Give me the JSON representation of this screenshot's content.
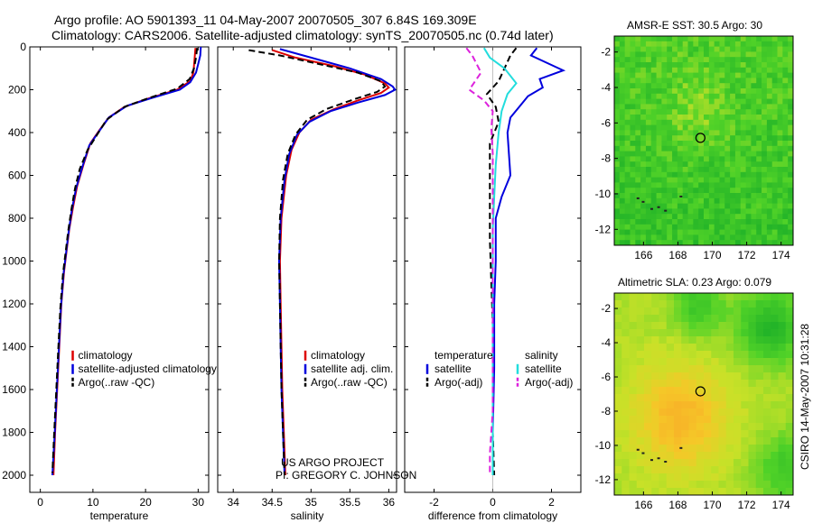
{
  "header": {
    "line1": "Argo profile: AO 5901393_11 04-May-2007 20070505_307 6.84S 169.309E",
    "line2": "Climatology: CARS2006. Satellite-adjusted climatology: synTS_20070505.nc (0.74d later)"
  },
  "side_stamp": "CSIRO 14-May-2007 10:31:28",
  "project_note": [
    "US ARGO PROJECT",
    "PI: GREGORY C. JOHNSON"
  ],
  "chart_data": [
    {
      "type": "line",
      "id": "temperature",
      "xlabel": "temperature",
      "xlim": [
        -2,
        32
      ],
      "xticks": [
        0,
        10,
        20,
        30
      ],
      "ylim": [
        2080,
        0
      ],
      "yticks": [
        0,
        200,
        400,
        600,
        800,
        1000,
        1200,
        1400,
        1600,
        1800,
        2000
      ],
      "legend": [
        {
          "label": "climatology",
          "color": "#dd0000",
          "dash": "solid"
        },
        {
          "label": "satellite-adjusted climatology",
          "color": "#0000dd",
          "dash": "solid"
        },
        {
          "label": "Argo(..raw -QC)",
          "color": "#000000",
          "dash": "dashed"
        }
      ],
      "series": [
        {
          "name": "climatology",
          "color": "#dd0000",
          "dash": "solid",
          "points": [
            [
              29.5,
              5
            ],
            [
              29.3,
              60
            ],
            [
              29.1,
              120
            ],
            [
              28.5,
              160
            ],
            [
              26,
              200
            ],
            [
              20,
              245
            ],
            [
              16,
              280
            ],
            [
              13,
              330
            ],
            [
              11.2,
              390
            ],
            [
              9.5,
              450
            ],
            [
              8.2,
              550
            ],
            [
              7,
              650
            ],
            [
              6.2,
              750
            ],
            [
              5.5,
              850
            ],
            [
              5,
              950
            ],
            [
              4.5,
              1050
            ],
            [
              4,
              1200
            ],
            [
              3.6,
              1400
            ],
            [
              3.2,
              1600
            ],
            [
              2.8,
              1800
            ],
            [
              2.5,
              2000
            ]
          ]
        },
        {
          "name": "satellite-adjusted climatology",
          "color": "#0000dd",
          "dash": "solid",
          "points": [
            [
              30.5,
              0
            ],
            [
              30.4,
              40
            ],
            [
              30,
              80
            ],
            [
              29.6,
              120
            ],
            [
              28.5,
              165
            ],
            [
              26.5,
              200
            ],
            [
              21,
              240
            ],
            [
              16.5,
              275
            ],
            [
              13,
              330
            ],
            [
              11,
              400
            ],
            [
              9.3,
              460
            ],
            [
              8,
              560
            ],
            [
              6.8,
              660
            ],
            [
              6,
              760
            ],
            [
              5.4,
              860
            ],
            [
              4.9,
              960
            ],
            [
              4.4,
              1060
            ],
            [
              3.9,
              1220
            ],
            [
              3.5,
              1420
            ],
            [
              3.1,
              1620
            ],
            [
              2.7,
              1820
            ],
            [
              2.3,
              2000
            ]
          ]
        },
        {
          "name": "Argo(..raw -QC)",
          "color": "#000000",
          "dash": "dashed",
          "points": [
            [
              29.8,
              5
            ],
            [
              29.6,
              50
            ],
            [
              29.2,
              100
            ],
            [
              28.4,
              150
            ],
            [
              26,
              195
            ],
            [
              20.5,
              240
            ],
            [
              16,
              280
            ],
            [
              12.6,
              340
            ],
            [
              10.8,
              410
            ],
            [
              9,
              480
            ],
            [
              7.5,
              570
            ],
            [
              6.6,
              660
            ],
            [
              5.9,
              760
            ],
            [
              5.3,
              860
            ],
            [
              4.8,
              960
            ],
            [
              4.3,
              1060
            ],
            [
              3.8,
              1220
            ],
            [
              3.4,
              1420
            ],
            [
              3,
              1620
            ],
            [
              2.6,
              1820
            ],
            [
              2.3,
              1990
            ]
          ]
        }
      ]
    },
    {
      "type": "line",
      "id": "salinity",
      "xlabel": "salinity",
      "xlim": [
        33.8,
        36.1
      ],
      "xticks": [
        34,
        34.5,
        35,
        35.5,
        36
      ],
      "xticklabels": [
        "34",
        "34.5",
        "35",
        "35.5",
        "36"
      ],
      "ylim": [
        2080,
        0
      ],
      "legend": [
        {
          "label": "climatology",
          "color": "#dd0000",
          "dash": "solid"
        },
        {
          "label": "satellite adj. clim.",
          "color": "#0000dd",
          "dash": "solid"
        },
        {
          "label": "Argo(..raw -QC)",
          "color": "#000000",
          "dash": "dashed"
        }
      ],
      "series": [
        {
          "name": "climatology",
          "color": "#dd0000",
          "dash": "solid",
          "points": [
            [
              34.5,
              15
            ],
            [
              34.8,
              50
            ],
            [
              35.3,
              90
            ],
            [
              35.7,
              130
            ],
            [
              35.95,
              170
            ],
            [
              36.0,
              190
            ],
            [
              35.9,
              215
            ],
            [
              35.6,
              250
            ],
            [
              35.3,
              290
            ],
            [
              35.0,
              340
            ],
            [
              34.85,
              400
            ],
            [
              34.75,
              480
            ],
            [
              34.68,
              600
            ],
            [
              34.62,
              800
            ],
            [
              34.6,
              1000
            ],
            [
              34.61,
              1200
            ],
            [
              34.62,
              1400
            ],
            [
              34.63,
              1600
            ],
            [
              34.65,
              1800
            ],
            [
              34.67,
              2000
            ]
          ]
        },
        {
          "name": "satellite adj. clim.",
          "color": "#0000dd",
          "dash": "solid",
          "points": [
            [
              34.6,
              10
            ],
            [
              35.0,
              50
            ],
            [
              35.5,
              100
            ],
            [
              35.9,
              150
            ],
            [
              36.05,
              185
            ],
            [
              36.08,
              200
            ],
            [
              35.95,
              225
            ],
            [
              35.6,
              260
            ],
            [
              35.25,
              300
            ],
            [
              34.98,
              350
            ],
            [
              34.82,
              410
            ],
            [
              34.72,
              500
            ],
            [
              34.66,
              620
            ],
            [
              34.61,
              800
            ],
            [
              34.59,
              1000
            ],
            [
              34.6,
              1200
            ],
            [
              34.61,
              1400
            ],
            [
              34.62,
              1600
            ],
            [
              34.64,
              1800
            ],
            [
              34.66,
              2000
            ]
          ]
        },
        {
          "name": "Argo(..raw -QC)",
          "color": "#000000",
          "dash": "dashed",
          "points": [
            [
              34.2,
              15
            ],
            [
              34.6,
              40
            ],
            [
              35.1,
              80
            ],
            [
              35.6,
              120
            ],
            [
              35.9,
              160
            ],
            [
              35.95,
              185
            ],
            [
              35.85,
              210
            ],
            [
              35.55,
              245
            ],
            [
              35.2,
              290
            ],
            [
              34.95,
              340
            ],
            [
              34.8,
              410
            ],
            [
              34.7,
              500
            ],
            [
              34.64,
              620
            ],
            [
              34.6,
              800
            ],
            [
              34.59,
              1000
            ],
            [
              34.6,
              1200
            ],
            [
              34.61,
              1400
            ],
            [
              34.62,
              1600
            ],
            [
              34.64,
              1800
            ],
            [
              34.66,
              2000
            ]
          ]
        }
      ]
    },
    {
      "type": "line",
      "id": "difference",
      "xlabel": "difference from climatology",
      "xlim": [
        -3,
        3
      ],
      "xticks": [
        -2,
        0,
        2
      ],
      "ylim": [
        2080,
        0
      ],
      "legend_groups": [
        {
          "title": "temperature",
          "items": [
            {
              "label": "satellite",
              "color": "#0000dd",
              "dash": "solid"
            },
            {
              "label": "Argo(-adj)",
              "color": "#000000",
              "dash": "dashed"
            }
          ]
        },
        {
          "title": "salinity",
          "items": [
            {
              "label": "satellite",
              "color": "#22dddd",
              "dash": "solid"
            },
            {
              "label": "Argo(-adj)",
              "color": "#dd22dd",
              "dash": "dashed"
            }
          ]
        }
      ],
      "series": [
        {
          "name": "temperature satellite",
          "color": "#0000dd",
          "dash": "solid",
          "points": [
            [
              1.5,
              5
            ],
            [
              1.3,
              40
            ],
            [
              2.4,
              110
            ],
            [
              1.6,
              150
            ],
            [
              1.7,
              190
            ],
            [
              1.2,
              230
            ],
            [
              0.9,
              280
            ],
            [
              0.6,
              330
            ],
            [
              0.5,
              400
            ],
            [
              0.55,
              500
            ],
            [
              0.6,
              600
            ],
            [
              0.3,
              700
            ],
            [
              0.1,
              800
            ],
            [
              0.1,
              1000
            ],
            [
              0.05,
              1200
            ],
            [
              0.05,
              1500
            ],
            [
              0.0,
              1800
            ],
            [
              0.0,
              2000
            ]
          ]
        },
        {
          "name": "temperature Argo(-adj)",
          "color": "#000000",
          "dash": "dashed",
          "points": [
            [
              0.8,
              5
            ],
            [
              0.6,
              40
            ],
            [
              0.4,
              100
            ],
            [
              0.2,
              160
            ],
            [
              -0.2,
              220
            ],
            [
              0.1,
              280
            ],
            [
              0.2,
              350
            ],
            [
              -0.1,
              450
            ],
            [
              -0.1,
              600
            ],
            [
              -0.1,
              750
            ],
            [
              -0.1,
              900
            ],
            [
              -0.05,
              1100
            ],
            [
              0.0,
              1300
            ],
            [
              0.0,
              1600
            ],
            [
              0.0,
              1800
            ],
            [
              0.05,
              2000
            ]
          ]
        },
        {
          "name": "salinity satellite",
          "color": "#22dddd",
          "dash": "solid",
          "points": [
            [
              -0.3,
              5
            ],
            [
              -0.1,
              50
            ],
            [
              0.4,
              100
            ],
            [
              0.8,
              170
            ],
            [
              0.5,
              220
            ],
            [
              0.3,
              300
            ],
            [
              0.2,
              400
            ],
            [
              0.1,
              550
            ],
            [
              0.05,
              700
            ],
            [
              0.0,
              850
            ],
            [
              0.0,
              1000
            ],
            [
              0.0,
              1300
            ],
            [
              0.0,
              1600
            ],
            [
              0.0,
              1800
            ],
            [
              0.0,
              2000
            ]
          ]
        },
        {
          "name": "salinity Argo(-adj)",
          "color": "#dd22dd",
          "dash": "dashed",
          "points": [
            [
              -0.9,
              5
            ],
            [
              -0.7,
              40
            ],
            [
              -0.4,
              120
            ],
            [
              -0.8,
              200
            ],
            [
              -0.3,
              250
            ],
            [
              0.0,
              300
            ],
            [
              -0.05,
              380
            ],
            [
              0.0,
              500
            ],
            [
              0.0,
              700
            ],
            [
              0.0,
              900
            ],
            [
              0.0,
              1100
            ],
            [
              0.0,
              1300
            ],
            [
              0.0,
              1500
            ],
            [
              0.0,
              1700
            ],
            [
              -0.1,
              1900
            ],
            [
              -0.1,
              2000
            ]
          ]
        }
      ]
    },
    {
      "type": "heatmap",
      "id": "sst_map",
      "title": "AMSR-E SST: 30.5 Argo: 30",
      "xlim": [
        164.3,
        174.7
      ],
      "ylim": [
        -12.9,
        -1.1
      ],
      "xticks": [
        166,
        168,
        170,
        172,
        174
      ],
      "yticks": [
        -2,
        -4,
        -6,
        -8,
        -10,
        -12
      ],
      "marker": {
        "lon": 169.31,
        "lat": -6.84
      },
      "palette": "green-to-orange",
      "dominant_color": "#33cc22"
    },
    {
      "type": "heatmap",
      "id": "sla_map",
      "title": "Altimetric SLA: 0.23 Argo: 0.079",
      "xlim": [
        164.3,
        174.7
      ],
      "ylim": [
        -12.9,
        -1.1
      ],
      "xticks": [
        166,
        168,
        170,
        172,
        174
      ],
      "yticks": [
        -2,
        -4,
        -6,
        -8,
        -10,
        -12
      ],
      "marker": {
        "lon": 169.31,
        "lat": -6.84
      },
      "palette": "green-to-orange",
      "dominant_color": "#e8c82a"
    }
  ]
}
